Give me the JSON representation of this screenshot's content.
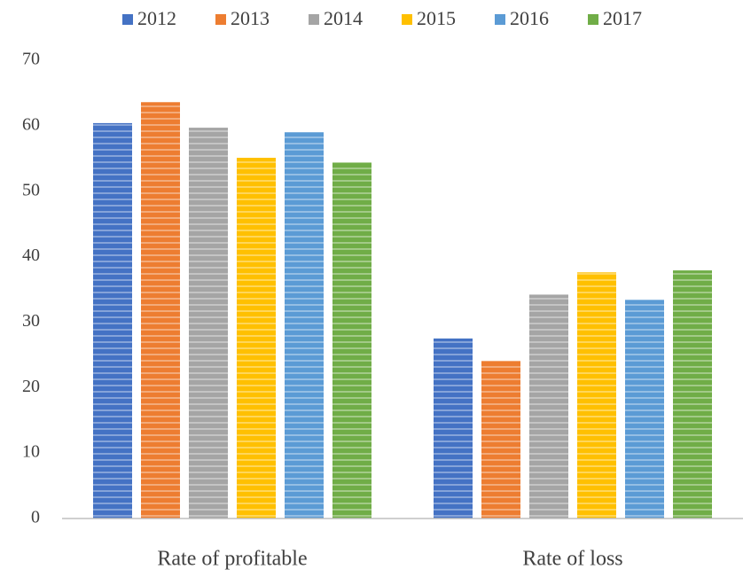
{
  "chart_data": {
    "type": "bar",
    "categories": [
      "Rate of profitable",
      "Rate of loss"
    ],
    "series": [
      {
        "name": "2012",
        "color": "#4472c4",
        "values": [
          60.4,
          27.5
        ]
      },
      {
        "name": "2013",
        "color": "#ed7d31",
        "values": [
          63.6,
          24.1
        ]
      },
      {
        "name": "2014",
        "color": "#a5a5a5",
        "values": [
          59.7,
          34.2
        ]
      },
      {
        "name": "2015",
        "color": "#ffc000",
        "values": [
          55.1,
          37.6
        ]
      },
      {
        "name": "2016",
        "color": "#5b9bd5",
        "values": [
          59.0,
          33.4
        ]
      },
      {
        "name": "2017",
        "color": "#70ad47",
        "values": [
          54.4,
          37.9
        ]
      }
    ],
    "ylim": [
      0,
      70
    ],
    "yticks": [
      0,
      10,
      20,
      30,
      40,
      50,
      60,
      70
    ],
    "grid": false,
    "legend": "top"
  }
}
